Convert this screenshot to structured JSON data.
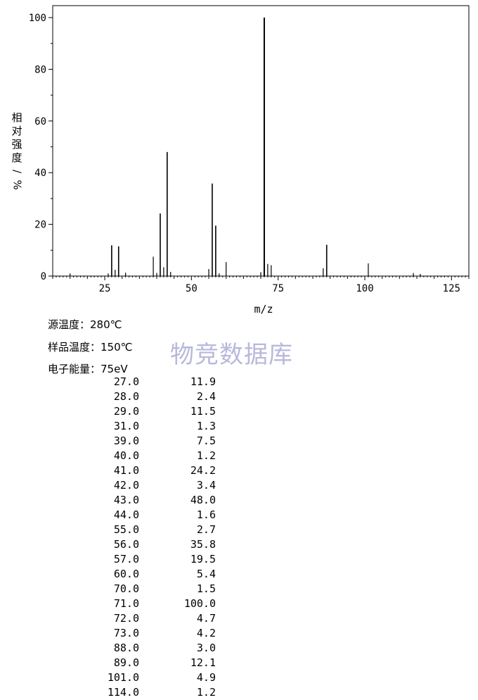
{
  "chart_data": {
    "type": "bar",
    "xlabel": "m/z",
    "ylabel": "相对强度/%",
    "xlim": [
      10,
      130
    ],
    "ylim": [
      0,
      100
    ],
    "xticks": [
      25,
      50,
      75,
      100,
      125
    ],
    "yticks": [
      0,
      20,
      40,
      60,
      80,
      100
    ],
    "plot_peaks": [
      {
        "x": 15,
        "y": 1.0
      },
      {
        "x": 26,
        "y": 1.0
      },
      {
        "x": 27,
        "y": 11.9
      },
      {
        "x": 28,
        "y": 2.4
      },
      {
        "x": 29,
        "y": 11.5
      },
      {
        "x": 31,
        "y": 1.3
      },
      {
        "x": 39,
        "y": 7.5
      },
      {
        "x": 40,
        "y": 1.2
      },
      {
        "x": 41,
        "y": 24.2
      },
      {
        "x": 42,
        "y": 3.4
      },
      {
        "x": 43,
        "y": 48.0
      },
      {
        "x": 44,
        "y": 1.6
      },
      {
        "x": 55,
        "y": 2.7
      },
      {
        "x": 56,
        "y": 35.8
      },
      {
        "x": 57,
        "y": 19.5
      },
      {
        "x": 58,
        "y": 1.0
      },
      {
        "x": 60,
        "y": 5.4
      },
      {
        "x": 70,
        "y": 1.5
      },
      {
        "x": 71,
        "y": 100.0
      },
      {
        "x": 72,
        "y": 4.7
      },
      {
        "x": 73,
        "y": 4.2
      },
      {
        "x": 88,
        "y": 3.0
      },
      {
        "x": 89,
        "y": 12.1
      },
      {
        "x": 101,
        "y": 4.9
      },
      {
        "x": 114,
        "y": 1.2
      },
      {
        "x": 116,
        "y": 0.8
      }
    ]
  },
  "meta": {
    "source_temp": "源温度：280℃",
    "sample_temp": "样品温度：150℃",
    "electron_energy": "电子能量：75eV"
  },
  "watermark": "物竞数据库",
  "peak_table": [
    {
      "mz": "27.0",
      "intensity": "11.9"
    },
    {
      "mz": "28.0",
      "intensity": "2.4"
    },
    {
      "mz": "29.0",
      "intensity": "11.5"
    },
    {
      "mz": "31.0",
      "intensity": "1.3"
    },
    {
      "mz": "39.0",
      "intensity": "7.5"
    },
    {
      "mz": "40.0",
      "intensity": "1.2"
    },
    {
      "mz": "41.0",
      "intensity": "24.2"
    },
    {
      "mz": "42.0",
      "intensity": "3.4"
    },
    {
      "mz": "43.0",
      "intensity": "48.0"
    },
    {
      "mz": "44.0",
      "intensity": "1.6"
    },
    {
      "mz": "55.0",
      "intensity": "2.7"
    },
    {
      "mz": "56.0",
      "intensity": "35.8"
    },
    {
      "mz": "57.0",
      "intensity": "19.5"
    },
    {
      "mz": "60.0",
      "intensity": "5.4"
    },
    {
      "mz": "70.0",
      "intensity": "1.5"
    },
    {
      "mz": "71.0",
      "intensity": "100.0"
    },
    {
      "mz": "72.0",
      "intensity": "4.7"
    },
    {
      "mz": "73.0",
      "intensity": "4.2"
    },
    {
      "mz": "88.0",
      "intensity": "3.0"
    },
    {
      "mz": "89.0",
      "intensity": "12.1"
    },
    {
      "mz": "101.0",
      "intensity": "4.9"
    },
    {
      "mz": "114.0",
      "intensity": "1.2"
    }
  ]
}
